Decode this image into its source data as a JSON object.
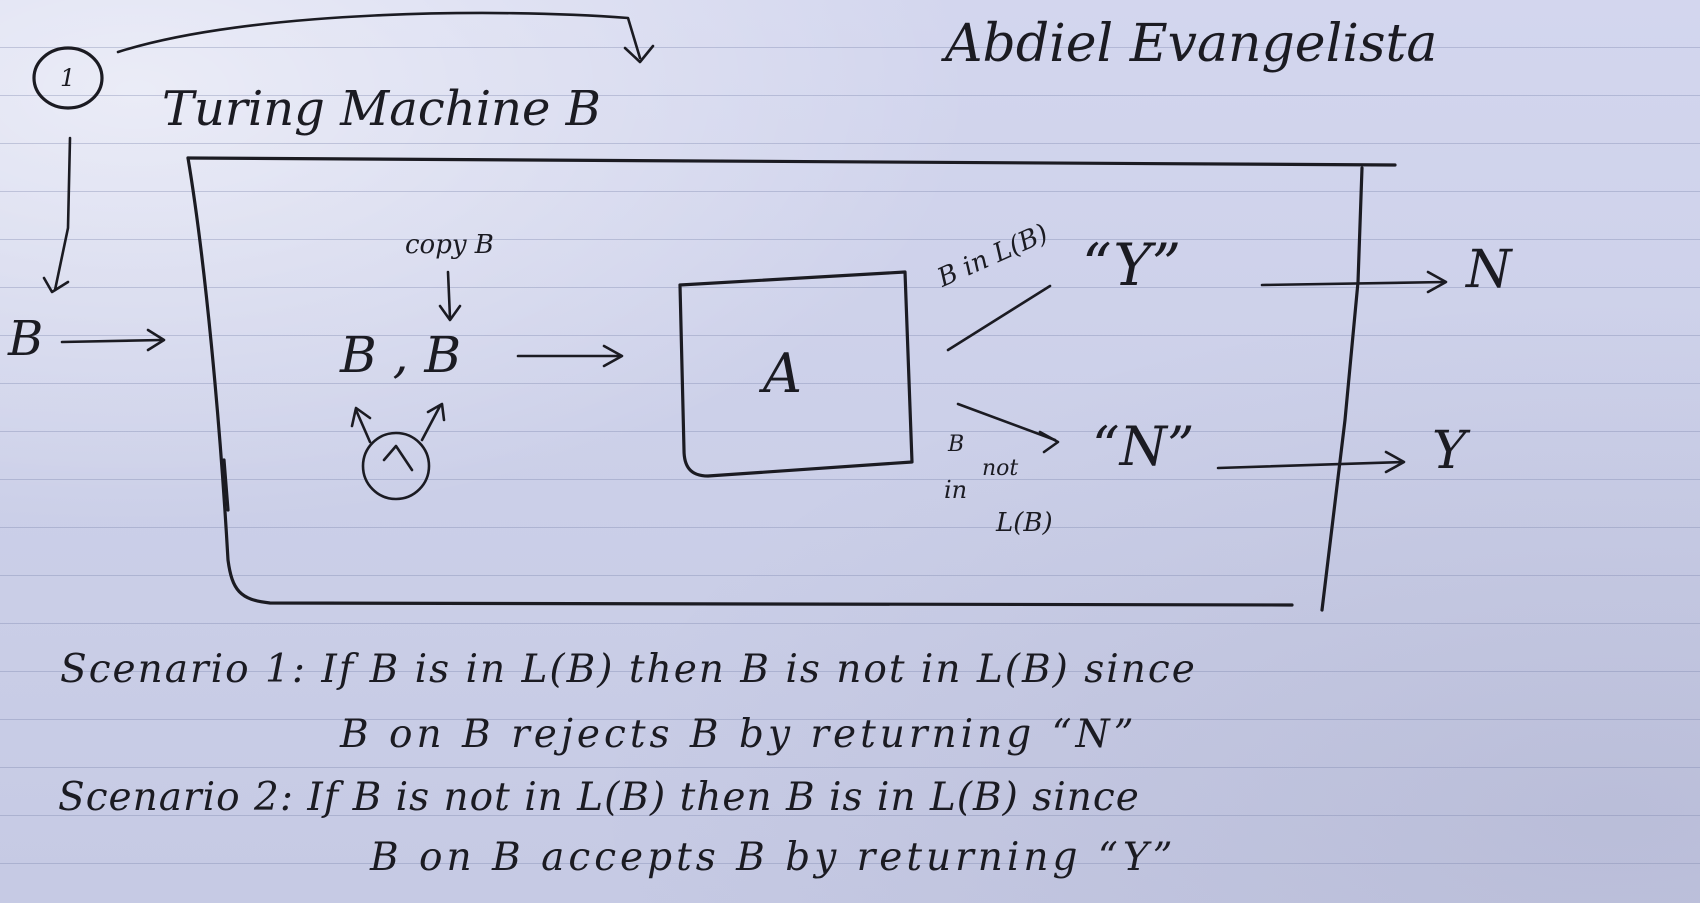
{
  "author": "Abdiel Evangelista",
  "problem_number": "1",
  "heading": "Turing Machine B",
  "machine_name": "B",
  "input_symbol": "B",
  "copy_label": "copy B",
  "copy_pair": "B , B",
  "subroutine": "A",
  "branch_in": "B in L(B)",
  "branch_out_1": "B",
  "branch_out_2": "not",
  "branch_out_3": "in",
  "branch_out_4": "L(B)",
  "mid_accept": "“Y”",
  "mid_reject": "“N”",
  "final_top": "N",
  "final_bottom": "Y",
  "scenario_1": {
    "line1": "Scenario 1: If B is in L(B) then B is not in L(B) since",
    "line2": "B on B rejects B by returning “N”"
  },
  "scenario_2": {
    "line1": "Scenario 2: If B is not in L(B) then B is in L(B) since",
    "line2": "B on B accepts B by returning “Y”"
  }
}
